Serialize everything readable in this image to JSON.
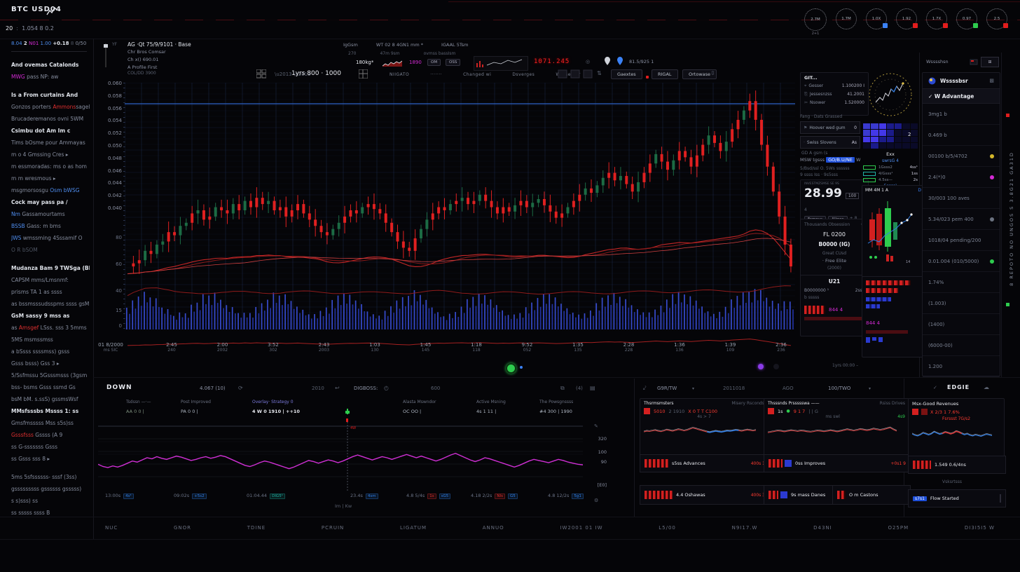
{
  "colors": {
    "accent_blue": "#3b82f6",
    "candle_red": "#e02020",
    "candle_green": "#1c6b44",
    "volume_blue": "#3347cf",
    "ma_red": "#b51f1f",
    "line_blue": "#2f62c4",
    "oscillator_magenta": "#cf2fd4",
    "spark_red": "#c94040",
    "spark_blue": "#2f7fe8",
    "green_dot": "#2ecc4e",
    "purple_dot": "#8b3be8",
    "led_red": "#ff2222"
  },
  "header": {
    "logo": "BTC USD04",
    "ticker_left": "20",
    "ticker_right": "1.054 8 0.2",
    "sub_mark": "2+1",
    "gauges": [
      {
        "v": "2.7M",
        "b": "",
        "sub": "2+1"
      },
      {
        "v": "1.7M",
        "b": ""
      },
      {
        "v": "1.0X",
        "b": "#3b82f6"
      },
      {
        "v": "1.92",
        "b": "#e11d1d"
      },
      {
        "v": "1.7X",
        "b": "#e11d1d"
      },
      {
        "v": "0.97",
        "b": "#2ecc4e"
      },
      {
        "v": "2.5",
        "b": "#e11d1d"
      }
    ]
  },
  "sidebar": {
    "ticker": [
      [
        "bl",
        "8.04"
      ],
      [
        "w",
        "2"
      ],
      [
        "m",
        "N01"
      ],
      [
        "bl",
        "1.00"
      ],
      [
        "w",
        "+0.18"
      ],
      [
        "d",
        "8"
      ],
      [
        "g",
        "0/50"
      ]
    ],
    "lines": [
      {
        "sp": [
          [
            "b",
            "And ovemas Catalonds"
          ]
        ]
      },
      {
        "sp": [
          [
            "m",
            "MWG"
          ],
          [
            "g",
            " pass NP:  aw"
          ]
        ]
      },
      {
        "sp": [
          [
            "b",
            "Is a From curtains And"
          ]
        ],
        "gap": 1
      },
      {
        "sp": [
          [
            "g",
            "Gonzos porters "
          ],
          [
            "r",
            "Ammons"
          ],
          [
            "g",
            "sagel p"
          ]
        ]
      },
      {
        "sp": [
          [
            "g",
            "Brucaderemanos ovni 5WM"
          ]
        ]
      },
      {
        "sp": [
          [
            "b",
            "Csimbu dot Am Im c"
          ]
        ]
      },
      {
        "sp": [
          [
            "g",
            "Tims bOsme pour Ammayas"
          ]
        ]
      },
      {
        "sp": [
          [
            "g",
            "m o 4 Gmssing Cres  ▸"
          ]
        ]
      },
      {
        "sp": [
          [
            "g",
            "m essmoradas: ms o as hom"
          ]
        ]
      },
      {
        "sp": [
          [
            "g",
            "m m wresmous  ▸"
          ]
        ]
      },
      {
        "sp": [
          [
            "g",
            "msgmorsosgu "
          ],
          [
            "h",
            "Osm bWSG"
          ]
        ]
      },
      {
        "sp": [
          [
            "b",
            "Cock may pass pa /"
          ]
        ]
      },
      {
        "sp": [
          [
            "h",
            "Nm "
          ],
          [
            "g",
            "Gassamourtams"
          ]
        ]
      },
      {
        "sp": [
          [
            "h",
            "BSSB "
          ],
          [
            "g",
            "Gass: m bms"
          ]
        ]
      },
      {
        "sp": [
          [
            "h",
            "JWS "
          ],
          [
            "g",
            "wmssming 4Sssamif O"
          ]
        ]
      },
      {
        "sp": [
          [
            "d",
            "O R bSOM"
          ]
        ]
      },
      {
        "sp": [
          [
            "b",
            "Mudanza Bam 9 TWSga (BL"
          ]
        ],
        "gap": 1
      },
      {
        "sp": [
          [
            "g",
            "CAPSM mms/Lmsnmf:"
          ]
        ]
      },
      {
        "sp": [
          [
            "g",
            "prisms TA 1 as  ssss"
          ]
        ]
      },
      {
        "sp": [
          [
            "g",
            "as bssmsssudsspms ssss gsM"
          ]
        ]
      },
      {
        "sp": [
          [
            "b",
            "GsM sassy 9 mss as"
          ]
        ]
      },
      {
        "sp": [
          [
            "g",
            "as "
          ],
          [
            "r",
            "Amsgef"
          ],
          [
            "g",
            " LSss. sss 3 5mms"
          ]
        ]
      },
      {
        "sp": [
          [
            "g",
            "5MS msmssmss"
          ]
        ]
      },
      {
        "sp": [
          [
            "g",
            "a bSsss ssssmss) gsss"
          ]
        ]
      },
      {
        "sp": [
          [
            "g",
            "Gsss bsss) Gss 3  ▸"
          ]
        ]
      },
      {
        "sp": [
          [
            "g",
            "5/Ssfmssu 5Gsssmsss (3gsm"
          ]
        ]
      },
      {
        "sp": [
          [
            "g",
            "bss- bsms Gsss ssmd  Gs"
          ]
        ]
      },
      {
        "sp": [
          [
            "g",
            "bsM bM. s.ssS) gssmsWsf"
          ]
        ]
      },
      {
        "sp": [
          [
            "b",
            "  MMsfsssbs Mssss 1:  ss"
          ]
        ]
      },
      {
        "sp": [
          [
            "g",
            "  Gmsfmsssss Mss s5s)ss"
          ]
        ]
      },
      {
        "sp": [
          [
            "r",
            "Gsssfsss"
          ],
          [
            "g",
            " Gssss (A  9"
          ]
        ]
      },
      {
        "sp": [
          [
            "g",
            "  ss G-sssssss Gsss"
          ]
        ]
      },
      {
        "sp": [
          [
            "g",
            "  ss Gsss sss 8  ▸"
          ]
        ]
      },
      {
        "sp": [
          [
            "g",
            "5ms 5sfssssss- sssf  (3ss)"
          ]
        ],
        "gap": 1
      },
      {
        "sp": [
          [
            "g",
            "gsssssssss gssssss gsssss)"
          ]
        ]
      },
      {
        "sp": [
          [
            "g",
            "  s s)sss) ss"
          ]
        ]
      },
      {
        "sp": [
          [
            "g",
            "  ss sssss ssss B"
          ]
        ]
      }
    ]
  },
  "chart": {
    "legend": [
      "AG ·Qt 75/9/9101  · Base",
      "Chr Bros Comsar",
      "Ch x() 690.01",
      "A Profile First"
    ],
    "legend_sub": "COL/DD 3900",
    "topmid_r1": [
      "IgGsm",
      "WT 02 8 4GN1 mm *",
      "IGAAL 5Tsm"
    ],
    "topmid_r2": [
      "270",
      "47m 9sm",
      "ovmss bassIsm"
    ],
    "weight": "180kg*",
    "magenta_val": "1890",
    "pills": [
      "OM",
      "OSS"
    ],
    "led": "1071.245",
    "pin_val": "81.5/925 1",
    "toolbar": {
      "range": "1yrs 800 · 1000",
      "labels": [
        "NIIGATO",
        "·······",
        "Changed wi",
        "Dsverges",
        "Wasse ner"
      ],
      "buttons": [
        "Gaextes",
        "RIGAL",
        "Ortowase"
      ]
    },
    "y_price": [
      "0.060",
      "0.058",
      "0.056",
      "0.054",
      "0.052",
      "0.050",
      "0.048",
      "0.046",
      "0.044",
      "0.042",
      "0.040"
    ],
    "y_vol": [
      "80",
      "60",
      "40",
      "15",
      "0"
    ],
    "x_first": [
      "01 8/2000",
      "ms SIC"
    ],
    "x_labels": [
      [
        "2:45",
        "240"
      ],
      [
        "2:00",
        "2002"
      ],
      [
        "3:52",
        "302"
      ],
      [
        "2:43",
        "2003"
      ],
      [
        "1:03",
        "130"
      ],
      [
        "1:45",
        "145"
      ],
      [
        "1:18",
        "118"
      ],
      [
        "9:52",
        "052"
      ],
      [
        "1:35",
        "135"
      ],
      [
        "2:28",
        "228"
      ],
      [
        "1:36",
        "136"
      ],
      [
        "1:39",
        "109"
      ],
      [
        "2:36",
        "236"
      ]
    ],
    "marker_note": "1yrs 00:00 –"
  },
  "rightA": {
    "tools_title": "GIT...",
    "tools": [
      [
        "Gesser",
        "1.100200 I"
      ],
      [
        "Jessesnzss",
        "41.2001"
      ],
      [
        "Nsower",
        "1.520000"
      ]
    ],
    "fang": "Fang · Dats Grassed",
    "hoover": [
      [
        "Hoover wed gum",
        "0"
      ],
      [
        "Swiss Slovens",
        "As"
      ]
    ],
    "iconrow": "GD A gsm (s",
    "link_pre": "MSW tgsss",
    "link": "GO/B.U/NE",
    "link_suf": "W",
    "dimlines": [
      "5/Bsd/ssl O. 5Ws ssssss",
      "9 ssss Iss · 9s5sss"
    ],
    "big": {
      "label": "INVESTMZSMSE SE 9S",
      "value": "28.99",
      "badge": "100",
      "sup": "4",
      "btn1": "Famous",
      "btn2": "Allows",
      "plus": "+ 8"
    },
    "fl": {
      "title": "Thousands Obsession",
      "right": "O",
      "l1": "FL 0200",
      "l2": "B0000 (IG)",
      "l3": "Great CUsd",
      "l4": "· Free Elite",
      "l5": "(2000)"
    },
    "u21": {
      "title": "U21",
      "r1": "B0000000 ¹",
      "r1v": "2sss",
      "r2": "b sssss",
      "red_label": "844 4"
    }
  },
  "rightB": {
    "mini_header": "MM 4M 1 A",
    "mini_d": "D",
    "heat_num": "2",
    "exx_title": "Exx",
    "exx_link": "swrsG 4",
    "exx_rows": [
      [
        "1Gsss2",
        "4ss¹"
      ],
      [
        "4/Gsss¹",
        "1ss"
      ],
      [
        "4.5ss—",
        "2s"
      ]
    ],
    "exx_foot": "5ssss¹",
    "red_label": "844 4"
  },
  "watchlist": {
    "top": "Wsssshsn",
    "title": "Wssssbsr",
    "filter": "✓  W Advantage",
    "rows": [
      {
        "t": "3mg1 b"
      },
      {
        "t": "0.469 b"
      },
      {
        "t": "00100 b/5/4702",
        "dot": "#d4b62a"
      },
      {
        "t": "2.4(*)0",
        "dot": "#d42ad4"
      },
      {
        "t": "30/003 100 aves"
      },
      {
        "t": "5.34/023 pem 400",
        "dot": "#6b7280"
      },
      {
        "t": "1018/04 pending/200"
      },
      {
        "t": "0.01.004 (010/5000)",
        "dot": "#2ecc4e"
      },
      {
        "t": "1.74%"
      },
      {
        "t": "(1.003)"
      },
      {
        "t": "(1400)"
      },
      {
        "t": "(6000-00)"
      },
      {
        "t": "1.200"
      }
    ],
    "vertical": "8  REPOTO  NO  UNGOS  S  3.8G21  GA31D"
  },
  "bottom_left": {
    "title": "DOWN",
    "h1": "4.067 (10)",
    "h2": "2010",
    "h3": "DIGBOSS:",
    "h4": "600",
    "stats": [
      {
        "h": "Tsdssn —·—",
        "v": "AA 0 0  |"
      },
      {
        "h": "Post Improved",
        "v": "PA 0 0  |"
      },
      {
        "h": "Overlay· Strategy 0",
        "v": "4 W 0 1910   |   ++10"
      },
      {
        "h": "Alasta Mswndor",
        "v": "OC OO  |"
      },
      {
        "h": "Active Msning",
        "v": "4s 1 11  |"
      },
      {
        "h": "The Powsgnssss",
        "v": "#4 300  |  1990"
      }
    ],
    "ylabels": [
      "320",
      "100",
      "90",
      "[E0]"
    ],
    "xlabels": [
      {
        "t": "13:00s",
        "tags": [
          [
            "4s¹",
            "#2f7fe8"
          ]
        ]
      },
      {
        "t": "09:02s",
        "tags": [
          [
            "+5s2",
            "#2f7fe8"
          ]
        ]
      },
      {
        "t": "01:04.44",
        "tags": [
          [
            "DIG5¹",
            "#1fb2a6"
          ]
        ]
      },
      {
        "t": "23.4s",
        "tags": [
          [
            "4sm",
            "#2f7fe8"
          ]
        ]
      },
      {
        "t": "4.8 5/4s",
        "tags": [
          [
            "1s",
            "#e03030"
          ],
          [
            "sG5",
            "#2f7fe8"
          ]
        ]
      },
      {
        "t": "4.18 2/2s",
        "tags": [
          [
            "NIs",
            "#e03030"
          ],
          [
            "G5",
            "#2f7fe8"
          ]
        ]
      },
      {
        "t": "4.8 12/2s",
        "tags": [
          [
            "5g1",
            "#2f7fe8"
          ]
        ]
      }
    ],
    "foot": "Im | Kw",
    "cross_tag": "4W"
  },
  "bottom_mid": {
    "header": [
      "G9R/TW",
      "2011018",
      "AGO",
      "100/TWO"
    ],
    "A": {
      "title_l": "Thsrmsmsters",
      "title_r": "Misery Rsconds",
      "vals": [
        [
          "box",
          "#d42020"
        ],
        [
          "r",
          "5010"
        ],
        [
          "g",
          "2 1910"
        ],
        [
          "r",
          "X 0 T T C100"
        ]
      ],
      "spark_label": "4s > 7",
      "rows": [
        {
          "bars": 34,
          "label": "s5ss Advances",
          "right": "400s 1"
        },
        {
          "bars": 40,
          "label": "4.4 Oshawas",
          "right": "400s 3"
        }
      ]
    },
    "B": {
      "title_l": "Thsssnds Prssssswa ——",
      "title_r": "Rsiss Drives",
      "vals": [
        [
          "box",
          "#d42020"
        ],
        [
          "w",
          "1s"
        ],
        [
          "grn",
          "●"
        ],
        [
          "r",
          "9 1 7"
        ],
        [
          "g",
          "|    |    G"
        ]
      ],
      "spark_label": "ms swl",
      "spark_right": "4s9",
      "rows": [
        {
          "bars": 20,
          "blue": 1,
          "label": "0ss Improves",
          "right": "+0s1 9"
        },
        {
          "bars": 14,
          "blue": 1,
          "label": "9s mass Danes",
          "right": ""
        },
        {
          "bars": 12,
          "label": "O m Castons",
          "right": ""
        }
      ]
    }
  },
  "bottom_right": {
    "check": "✓",
    "title": "EDGIE",
    "subtitle": "Msx-Good Revenues",
    "vals": [
      [
        "box",
        "#d42020"
      ],
      [
        "box",
        "#7a1212"
      ],
      [
        "r",
        "X 2/3 1 7.6%"
      ]
    ],
    "forecast": "Fsrssst 7G/s2",
    "row1": {
      "bars": 26,
      "label": "1.549 0.6/4ns",
      "right": ""
    },
    "volumes": "Vsksrtsss",
    "row2_tag": "s7s1",
    "row2_label": "Flow Started"
  },
  "nav": [
    "NUC",
    "GNOR",
    "TDINE",
    "PCRUIN",
    "LIGATUM",
    "ANNUO",
    "IW2001 01 IW",
    "L5/00",
    "N9I17.W",
    "D43NI",
    "O25PM",
    "DI3I5I5 W"
  ],
  "chart_data": {
    "type": "candlestick+volume",
    "title": "Main price chart",
    "ylim": [
      0.04,
      0.06
    ],
    "vol_ylim": [
      0,
      80
    ],
    "closes": [
      0.031,
      0.0315,
      0.032,
      0.0335,
      0.033,
      0.0345,
      0.035,
      0.0365,
      0.036,
      0.0375,
      0.038,
      0.0395,
      0.04,
      0.0385,
      0.039,
      0.0405,
      0.04,
      0.0395,
      0.041,
      0.04,
      0.0415,
      0.0405,
      0.042,
      0.041,
      0.0415,
      0.04,
      0.0405,
      0.039,
      0.04,
      0.041,
      0.0395,
      0.0385,
      0.0375,
      0.0365,
      0.036,
      0.037,
      0.038,
      0.039,
      0.04,
      0.0395,
      0.0405,
      0.041,
      0.0402,
      0.0395,
      0.038,
      0.0365,
      0.035,
      0.034,
      0.0335,
      0.0355,
      0.037,
      0.0385,
      0.0395,
      0.0405,
      0.04,
      0.041,
      0.0415,
      0.042,
      0.041,
      0.0415,
      0.0425,
      0.0415,
      0.0405,
      0.0395,
      0.0405,
      0.0398,
      0.0408,
      0.0415,
      0.0405,
      0.0412,
      0.0418,
      0.0408,
      0.0398,
      0.0388,
      0.0395,
      0.0405,
      0.0415,
      0.0425,
      0.0435,
      0.0428,
      0.044,
      0.0452,
      0.046,
      0.0448,
      0.0455,
      0.0442,
      0.043,
      0.0445,
      0.046,
      0.0475,
      0.049,
      0.0478,
      0.0465,
      0.048,
      0.0495,
      0.0485,
      0.047,
      0.0488,
      0.0505,
      0.052,
      0.0508,
      0.0495,
      0.051,
      0.053,
      0.0545,
      0.056,
      0.0575,
      0.0545,
      0.0505,
      0.047,
      0.043,
      0.039,
      0.0345,
      0.031
    ],
    "oscillator": [
      38,
      34,
      32,
      35,
      33,
      36,
      40,
      44,
      42,
      46,
      50,
      48,
      52,
      49,
      47,
      50,
      53,
      51,
      48,
      45,
      47,
      50,
      52,
      49,
      51,
      54,
      52,
      48,
      44,
      40,
      36,
      34,
      37,
      41,
      44,
      42,
      39,
      36,
      33,
      30,
      33,
      37,
      41,
      45,
      43,
      40,
      43,
      46,
      44,
      41,
      44,
      48,
      52,
      55,
      52,
      49,
      46,
      49,
      52,
      50,
      47,
      50,
      53,
      56,
      53,
      50,
      53,
      50,
      47,
      44,
      47,
      51,
      55,
      58,
      54,
      50,
      46,
      43,
      46,
      50,
      48,
      45,
      42,
      39,
      36,
      33,
      36,
      40,
      44,
      47,
      45,
      43,
      41,
      44,
      47,
      45,
      42,
      40,
      38,
      37
    ],
    "spark_a": [
      0.45,
      0.5,
      0.48,
      0.52,
      0.55,
      0.5,
      0.47,
      0.52,
      0.58,
      0.54,
      0.5,
      0.55,
      0.6,
      0.57,
      0.52,
      0.56,
      0.63,
      0.7,
      0.66,
      0.6,
      0.55,
      0.5,
      0.45,
      0.42,
      0.46,
      0.5,
      0.47,
      0.44,
      0.48,
      0.52,
      0.5,
      0.53,
      0.57,
      0.54,
      0.5,
      0.54,
      0.58,
      0.55,
      0.52,
      0.55
    ],
    "spark_b": [
      0.4,
      0.44,
      0.48,
      0.52,
      0.5,
      0.46,
      0.5,
      0.54,
      0.52,
      0.48,
      0.52,
      0.5,
      0.46,
      0.44,
      0.48,
      0.52,
      0.5,
      0.47,
      0.5,
      0.54,
      0.5,
      0.46,
      0.5,
      0.55,
      0.6,
      0.56,
      0.52,
      0.56,
      0.62,
      0.58,
      0.54,
      0.58,
      0.64,
      0.6,
      0.56,
      0.6,
      0.66,
      0.72,
      0.6,
      0.5
    ],
    "spark_c": [
      0.5,
      0.42,
      0.38,
      0.45,
      0.55,
      0.5,
      0.44,
      0.5,
      0.62,
      0.55,
      0.48,
      0.52,
      0.6,
      0.56,
      0.5,
      0.55,
      0.65,
      0.6,
      0.52,
      0.45,
      0.5,
      0.42,
      0.38,
      0.44,
      0.4,
      0.36,
      0.42,
      0.48,
      0.44,
      0.4
    ]
  }
}
